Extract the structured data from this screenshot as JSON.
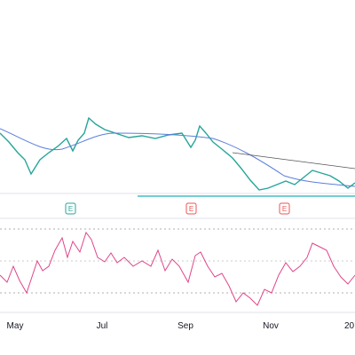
{
  "x_axis": {
    "labels": [
      "May",
      "Jul",
      "Sep",
      "Nov",
      "20"
    ]
  },
  "earnings_markers": [
    "E",
    "E",
    "E"
  ]
}
